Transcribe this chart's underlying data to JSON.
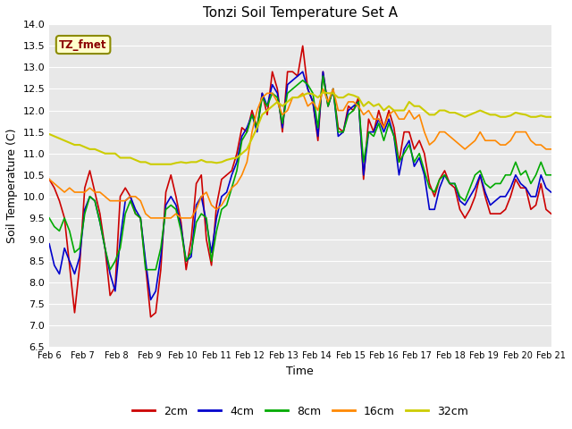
{
  "title": "Tonzi Soil Temperature Set A",
  "xlabel": "Time",
  "ylabel": "Soil Temperature (C)",
  "ylim": [
    6.5,
    14.0
  ],
  "yticks": [
    6.5,
    7.0,
    7.5,
    8.0,
    8.5,
    9.0,
    9.5,
    10.0,
    10.5,
    11.0,
    11.5,
    12.0,
    12.5,
    13.0,
    13.5,
    14.0
  ],
  "xtick_labels": [
    "Feb 6",
    "Feb 7",
    "Feb 8",
    "Feb 9",
    "Feb 10",
    "Feb 11",
    "Feb 12",
    "Feb 13",
    "Feb 14",
    "Feb 15",
    "Feb 16",
    "Feb 17",
    "Feb 18",
    "Feb 19",
    "Feb 20",
    "Feb 21"
  ],
  "colors": {
    "2cm": "#cc0000",
    "4cm": "#0000cc",
    "8cm": "#00aa00",
    "16cm": "#ff8800",
    "32cm": "#cccc00"
  },
  "annotation_text": "TZ_fmet",
  "annotation_color": "#8b0000",
  "annotation_bg": "#ffffcc",
  "annotation_edge": "#8b8b00",
  "fig_bg": "#ffffff",
  "plot_bg": "#e8e8e8",
  "grid_color": "#ffffff",
  "series_2cm": [
    10.4,
    10.2,
    9.9,
    9.5,
    8.4,
    7.3,
    8.4,
    10.2,
    10.6,
    10.1,
    9.6,
    8.8,
    7.7,
    7.9,
    10.0,
    10.2,
    10.0,
    9.6,
    9.5,
    8.4,
    7.2,
    7.3,
    8.3,
    10.1,
    10.5,
    10.0,
    9.4,
    8.3,
    9.0,
    10.3,
    10.5,
    9.0,
    8.4,
    9.8,
    10.4,
    10.5,
    10.6,
    11.0,
    11.6,
    11.5,
    12.0,
    11.6,
    12.4,
    11.9,
    12.9,
    12.5,
    11.5,
    12.9,
    12.9,
    12.8,
    13.5,
    12.5,
    12.2,
    11.3,
    12.9,
    12.1,
    12.5,
    11.6,
    11.5,
    12.1,
    12.0,
    12.3,
    10.4,
    11.8,
    11.5,
    12.0,
    11.6,
    12.0,
    11.6,
    10.8,
    11.5,
    11.5,
    11.1,
    11.3,
    11.0,
    10.3,
    10.0,
    10.4,
    10.6,
    10.3,
    10.2,
    9.7,
    9.5,
    9.7,
    10.0,
    10.5,
    10.0,
    9.6,
    9.6,
    9.6,
    9.7,
    10.0,
    10.4,
    10.2,
    10.2,
    9.7,
    9.8,
    10.3,
    9.7,
    9.6
  ],
  "series_4cm": [
    8.9,
    8.4,
    8.2,
    8.8,
    8.5,
    8.2,
    8.6,
    9.7,
    10.0,
    9.9,
    9.4,
    8.8,
    8.2,
    7.8,
    9.0,
    9.9,
    10.0,
    9.7,
    9.5,
    8.5,
    7.6,
    7.8,
    8.6,
    9.8,
    10.0,
    9.8,
    9.3,
    8.5,
    8.6,
    9.8,
    10.0,
    9.4,
    8.7,
    9.5,
    10.0,
    10.1,
    10.5,
    10.8,
    11.4,
    11.6,
    11.9,
    11.5,
    12.4,
    12.1,
    12.6,
    12.4,
    11.6,
    12.6,
    12.7,
    12.8,
    12.9,
    12.5,
    12.2,
    11.4,
    12.9,
    12.1,
    12.5,
    11.4,
    11.5,
    12.0,
    12.1,
    12.2,
    10.5,
    11.5,
    11.5,
    11.8,
    11.5,
    11.8,
    11.4,
    10.5,
    11.1,
    11.3,
    10.7,
    10.9,
    10.5,
    9.7,
    9.7,
    10.2,
    10.5,
    10.3,
    10.3,
    9.9,
    9.8,
    10.0,
    10.2,
    10.5,
    10.1,
    9.8,
    9.9,
    10.0,
    10.0,
    10.2,
    10.5,
    10.3,
    10.2,
    10.0,
    10.0,
    10.5,
    10.2,
    10.1
  ],
  "series_8cm": [
    9.5,
    9.3,
    9.2,
    9.5,
    9.2,
    8.7,
    8.8,
    9.6,
    10.0,
    9.9,
    9.4,
    8.8,
    8.3,
    8.5,
    8.8,
    9.6,
    9.9,
    9.6,
    9.5,
    8.3,
    8.3,
    8.3,
    8.8,
    9.7,
    9.8,
    9.7,
    9.2,
    8.5,
    8.7,
    9.4,
    9.6,
    9.5,
    8.5,
    9.2,
    9.7,
    9.8,
    10.2,
    10.6,
    11.3,
    11.5,
    11.9,
    11.6,
    12.3,
    12.1,
    12.4,
    12.3,
    11.7,
    12.4,
    12.5,
    12.6,
    12.7,
    12.6,
    12.4,
    11.6,
    12.8,
    12.1,
    12.5,
    11.5,
    11.5,
    11.9,
    12.0,
    12.2,
    10.8,
    11.5,
    11.4,
    11.7,
    11.3,
    11.7,
    11.4,
    10.8,
    11.0,
    11.2,
    10.8,
    11.0,
    10.6,
    10.2,
    10.1,
    10.4,
    10.5,
    10.3,
    10.3,
    10.0,
    9.9,
    10.2,
    10.5,
    10.6,
    10.3,
    10.2,
    10.3,
    10.3,
    10.5,
    10.5,
    10.8,
    10.5,
    10.6,
    10.3,
    10.5,
    10.8,
    10.5,
    10.5
  ],
  "series_16cm": [
    10.4,
    10.3,
    10.2,
    10.1,
    10.2,
    10.1,
    10.1,
    10.1,
    10.2,
    10.1,
    10.1,
    10.0,
    9.9,
    9.9,
    9.9,
    9.9,
    10.0,
    10.0,
    9.9,
    9.6,
    9.5,
    9.5,
    9.5,
    9.5,
    9.5,
    9.6,
    9.5,
    9.5,
    9.5,
    9.7,
    10.0,
    10.1,
    9.8,
    9.7,
    9.8,
    10.0,
    10.2,
    10.3,
    10.5,
    10.8,
    11.5,
    12.0,
    12.3,
    12.4,
    12.4,
    12.2,
    11.9,
    12.0,
    12.3,
    12.3,
    12.4,
    12.1,
    12.2,
    12.0,
    12.5,
    12.2,
    12.5,
    12.0,
    12.0,
    12.2,
    12.2,
    12.1,
    11.9,
    12.0,
    11.8,
    11.8,
    11.6,
    11.9,
    12.0,
    11.8,
    11.8,
    12.0,
    11.8,
    11.9,
    11.5,
    11.2,
    11.3,
    11.5,
    11.5,
    11.4,
    11.3,
    11.2,
    11.1,
    11.2,
    11.3,
    11.5,
    11.3,
    11.3,
    11.3,
    11.2,
    11.2,
    11.3,
    11.5,
    11.5,
    11.5,
    11.3,
    11.2,
    11.2,
    11.1,
    11.1
  ],
  "series_32cm": [
    11.45,
    11.4,
    11.35,
    11.3,
    11.25,
    11.2,
    11.2,
    11.15,
    11.1,
    11.1,
    11.05,
    11.0,
    11.0,
    11.0,
    10.9,
    10.9,
    10.9,
    10.85,
    10.8,
    10.8,
    10.75,
    10.75,
    10.75,
    10.75,
    10.75,
    10.78,
    10.8,
    10.78,
    10.8,
    10.8,
    10.85,
    10.8,
    10.8,
    10.78,
    10.8,
    10.85,
    10.88,
    10.9,
    11.0,
    11.1,
    11.35,
    11.6,
    11.9,
    12.0,
    12.1,
    12.2,
    12.1,
    12.2,
    12.3,
    12.3,
    12.35,
    12.4,
    12.38,
    12.3,
    12.42,
    12.4,
    12.4,
    12.3,
    12.3,
    12.38,
    12.35,
    12.3,
    12.1,
    12.2,
    12.1,
    12.15,
    12.0,
    12.1,
    12.0,
    12.0,
    12.0,
    12.2,
    12.1,
    12.1,
    12.0,
    11.9,
    11.9,
    12.0,
    12.0,
    11.95,
    11.95,
    11.9,
    11.85,
    11.9,
    11.95,
    12.0,
    11.95,
    11.9,
    11.9,
    11.85,
    11.85,
    11.88,
    11.95,
    11.92,
    11.9,
    11.85,
    11.85,
    11.88,
    11.85,
    11.85
  ]
}
